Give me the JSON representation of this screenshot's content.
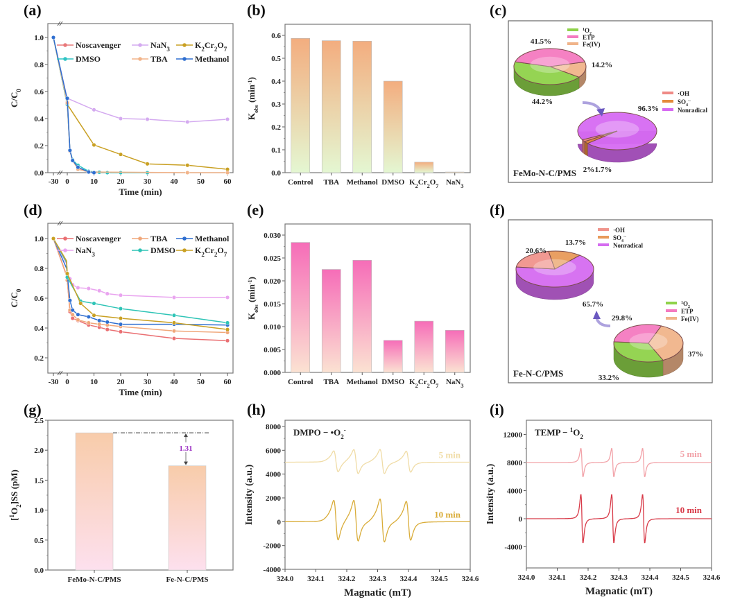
{
  "chart_data": [
    {
      "id": "a",
      "panel_label": "(a)",
      "type": "line",
      "xlabel": "Time (min)",
      "ylabel": "C/C0",
      "ylabel_main": "C/C",
      "ylabel_sub": "0",
      "xlim": [
        -30,
        60
      ],
      "ylim": [
        0.0,
        1.0
      ],
      "xticks": [
        "-30",
        "0",
        "10",
        "20",
        "30",
        "40",
        "50",
        "60"
      ],
      "yticks": [
        "0.0",
        "0.2",
        "0.4",
        "0.6",
        "0.8",
        "1.0"
      ],
      "legend": "top",
      "series": [
        {
          "name": "No scavenger",
          "color": "#e8787a",
          "x": [
            -30,
            -2,
            0,
            1,
            2,
            4,
            8,
            10
          ],
          "y": [
            1.0,
            0.53,
            0.52,
            0.16,
            0.09,
            0.03,
            0.005,
            0.0
          ]
        },
        {
          "name": "NaN3",
          "color": "#d4aaf0",
          "x": [
            -30,
            -2,
            0,
            10,
            20,
            30,
            45,
            60
          ],
          "y": [
            1.0,
            0.56,
            0.55,
            0.465,
            0.4,
            0.395,
            0.375,
            0.395
          ]
        },
        {
          "name": "K2Cr2O7",
          "color": "#c9a023",
          "x": [
            -30,
            -2,
            0,
            10,
            20,
            30,
            45,
            60
          ],
          "y": [
            1.0,
            0.52,
            0.505,
            0.205,
            0.135,
            0.065,
            0.055,
            0.025
          ]
        },
        {
          "name": "DMSO",
          "color": "#2ec4c4",
          "x": [
            -30,
            -2,
            0,
            1,
            2,
            4,
            8,
            12,
            15,
            20,
            30
          ],
          "y": [
            1.0,
            0.52,
            0.505,
            0.165,
            0.095,
            0.055,
            0.01,
            0.003,
            0.0,
            0.0,
            0.0
          ]
        },
        {
          "name": "TBA",
          "color": "#f2b48a",
          "x": [
            -30,
            -2,
            0,
            1,
            2,
            4,
            8,
            45,
            60
          ],
          "y": [
            1.0,
            0.53,
            0.515,
            0.16,
            0.09,
            0.025,
            0.005,
            0.0,
            0.0
          ]
        },
        {
          "name": "Methanol",
          "color": "#2f6fd0",
          "x": [
            -30,
            -2,
            0,
            1,
            2,
            4,
            8,
            10
          ],
          "y": [
            1.0,
            0.555,
            0.55,
            0.165,
            0.09,
            0.04,
            0.005,
            0.0
          ]
        }
      ]
    },
    {
      "id": "b",
      "panel_label": "(b)",
      "type": "bar",
      "ylabel": "Kobs (min-1)",
      "ylabel_main": "K",
      "ylabel_sub": "obs",
      "ylabel_tail": " (min",
      "ylabel_sup": "-1",
      "ylabel_end": ")",
      "ylim": [
        0.0,
        0.6
      ],
      "yticks": [
        "0.0",
        "0.1",
        "0.2",
        "0.3",
        "0.4",
        "0.5",
        "0.6"
      ],
      "categories": [
        "Control",
        "TBA",
        "Methanol",
        "DMSO",
        "K2Cr2O7",
        "NaN3"
      ],
      "values": [
        0.587,
        0.577,
        0.575,
        0.4,
        0.046,
        0.003
      ],
      "gradient_top": "#f3ad7f",
      "gradient_bottom": "#e4f7d2"
    },
    {
      "id": "c",
      "panel_label": "(c)",
      "type": "pie",
      "caption": "FeMo-N-C/PMS",
      "pies": [
        {
          "name": "nonradical-breakdown",
          "labels": [
            "1O2",
            "ETP",
            "Fe(IV)"
          ],
          "values": [
            44.2,
            41.5,
            14.2
          ],
          "value_labels": [
            "44.2%",
            "41.5%",
            "14.2%"
          ],
          "colors": [
            "#8fd24a",
            "#f47ac0",
            "#f0b48a"
          ]
        },
        {
          "name": "radical-vs-nonradical",
          "labels": [
            "·OH",
            "SO4·-",
            "Nonradical"
          ],
          "values": [
            1.7,
            2.0,
            96.3
          ],
          "value_labels": [
            "1.7%",
            "2%",
            "96.3%"
          ],
          "colors": [
            "#ef8a86",
            "#e48a3c",
            "#d66af2"
          ]
        }
      ]
    },
    {
      "id": "d",
      "panel_label": "(d)",
      "type": "line",
      "xlabel": "Time (min)",
      "ylabel": "C/C0",
      "ylabel_main": "C/C",
      "ylabel_sub": "0",
      "xlim": [
        -30,
        60
      ],
      "ylim": [
        0.2,
        1.0
      ],
      "xticks": [
        "-30",
        "0",
        "10",
        "20",
        "30",
        "40",
        "50",
        "60"
      ],
      "yticks": [
        "0.2",
        "0.4",
        "0.6",
        "0.8",
        "1.0"
      ],
      "legend": "top",
      "series": [
        {
          "name": "No scavenger",
          "color": "#ea6f72",
          "x": [
            -30,
            -3,
            0,
            1,
            2,
            4,
            8,
            12,
            15,
            20,
            40,
            60
          ],
          "y": [
            1.0,
            0.75,
            0.72,
            0.51,
            0.465,
            0.45,
            0.42,
            0.405,
            0.39,
            0.375,
            0.33,
            0.315
          ]
        },
        {
          "name": "TBA",
          "color": "#f0a77a",
          "x": [
            -30,
            -3,
            0,
            1,
            2,
            4,
            8,
            12,
            15,
            20,
            40,
            60
          ],
          "y": [
            1.0,
            0.755,
            0.72,
            0.52,
            0.49,
            0.455,
            0.435,
            0.425,
            0.42,
            0.41,
            0.38,
            0.37
          ]
        },
        {
          "name": "Methanol",
          "color": "#2f6fd0",
          "x": [
            -30,
            -3,
            0,
            1,
            2,
            4,
            8,
            12,
            15,
            20,
            40,
            60
          ],
          "y": [
            1.0,
            0.8,
            0.76,
            0.585,
            0.52,
            0.49,
            0.475,
            0.45,
            0.44,
            0.425,
            0.425,
            0.42
          ]
        },
        {
          "name": "NaN3",
          "color": "#e9a4ef",
          "x": [
            -30,
            -3,
            0,
            1,
            2,
            4,
            8,
            12,
            15,
            20,
            40,
            60
          ],
          "y": [
            1.0,
            0.83,
            0.74,
            0.73,
            0.69,
            0.67,
            0.665,
            0.65,
            0.63,
            0.62,
            0.605,
            0.605
          ]
        },
        {
          "name": "DMSO",
          "color": "#2ec4b6",
          "x": [
            -30,
            -3,
            0,
            5,
            10,
            20,
            40,
            60
          ],
          "y": [
            1.0,
            0.84,
            0.74,
            0.58,
            0.565,
            0.53,
            0.485,
            0.435
          ]
        },
        {
          "name": "K2Cr2O7",
          "color": "#c9a023",
          "x": [
            -30,
            -3,
            0,
            5,
            10,
            20,
            40,
            60
          ],
          "y": [
            1.0,
            0.85,
            0.765,
            0.565,
            0.485,
            0.465,
            0.435,
            0.39
          ]
        }
      ]
    },
    {
      "id": "e",
      "panel_label": "(e)",
      "type": "bar",
      "ylabel": "Kobs (min-1)",
      "ylabel_main": "K",
      "ylabel_sub": "obs",
      "ylabel_tail": " (min",
      "ylabel_sup": "-1",
      "ylabel_end": ")",
      "ylim": [
        0.0,
        0.03
      ],
      "yticks": [
        "0.000",
        "0.005",
        "0.010",
        "0.015",
        "0.020",
        "0.025",
        "0.030"
      ],
      "categories": [
        "Control",
        "TBA",
        "Methanol",
        "DMSO",
        "K2Cr2O7",
        "NaN3"
      ],
      "values": [
        0.0284,
        0.0225,
        0.0245,
        0.007,
        0.0112,
        0.0092
      ],
      "gradient_top": "#f66db8",
      "gradient_bottom": "#fbe2d2"
    },
    {
      "id": "f",
      "panel_label": "(f)",
      "type": "pie",
      "caption": "Fe-N-C/PMS",
      "pies": [
        {
          "name": "radical-vs-nonradical",
          "labels": [
            "·OH",
            "SO4·-",
            "Nonradical"
          ],
          "values": [
            20.6,
            13.7,
            65.7
          ],
          "value_labels": [
            "20.6%",
            "13.7%",
            "65.7%"
          ],
          "colors": [
            "#f0948c",
            "#e89a5a",
            "#d56cf0"
          ]
        },
        {
          "name": "nonradical-breakdown",
          "labels": [
            "1O2",
            "ETP",
            "Fe(IV)"
          ],
          "values": [
            33.2,
            29.8,
            37.0
          ],
          "value_labels": [
            "33.2%",
            "29.8%",
            "37%"
          ],
          "colors": [
            "#8fd24a",
            "#f47ac0",
            "#f0b48a"
          ]
        }
      ]
    },
    {
      "id": "g",
      "panel_label": "(g)",
      "type": "bar",
      "ylabel": "[1O2]SS (pM)",
      "ylim": [
        0.0,
        2.5
      ],
      "yticks": [
        "0.0",
        "0.5",
        "1.0",
        "1.5",
        "2.0",
        "2.5"
      ],
      "categories": [
        "FeMo-N-C/PMS",
        "Fe-N-C/PMS"
      ],
      "values": [
        2.29,
        1.74
      ],
      "annotation": "1.31",
      "annotation_color": "#9b2fc2",
      "gradient_top": "#f8ccaa",
      "gradient_bottom": "#fde0ee"
    },
    {
      "id": "h",
      "panel_label": "(h)",
      "type": "line",
      "title": "DMPO − •O2-",
      "title_main": "DMPO − •O",
      "title_sub": "2",
      "title_sup": "-",
      "xlabel": "Magnatic (mT)",
      "ylabel": "Intensity (a.u.)",
      "xlim": [
        324.0,
        324.6
      ],
      "ylim": [
        -4000,
        8000
      ],
      "xticks": [
        "324.0",
        "324.1",
        "324.2",
        "324.3",
        "324.4",
        "324.5",
        "324.6"
      ],
      "yticks": [
        "-4000",
        "-2000",
        "0",
        "2000",
        "4000",
        "6000",
        "8000"
      ],
      "series": [
        {
          "name": "5 min",
          "color": "#f0dca6",
          "baseline": 5000,
          "peaks": [
            324.165,
            324.23,
            324.315,
            324.4
          ],
          "amplitudes": [
            1000,
            1150,
            1150,
            1000
          ]
        },
        {
          "name": "10 min",
          "color": "#d9ac38",
          "baseline": 0,
          "peaks": [
            324.165,
            324.23,
            324.315,
            324.4
          ],
          "amplitudes": [
            1900,
            1950,
            2050,
            1850
          ]
        }
      ]
    },
    {
      "id": "i",
      "panel_label": "(i)",
      "type": "line",
      "title": "TEMP − 1O2",
      "title_pre": "TEMP − ",
      "title_sup": "1",
      "title_main": "O",
      "title_sub": "2",
      "xlabel": "Magnatic (mT)",
      "ylabel": "Intensity (a.u.)",
      "xlim": [
        324.0,
        324.6
      ],
      "ylim": [
        -6000,
        14000
      ],
      "xticks": [
        "324.0",
        "324.1",
        "324.2",
        "324.3",
        "324.4",
        "324.5",
        "324.6"
      ],
      "yticks": [
        "-4000",
        "0",
        "4000",
        "8000",
        "12000"
      ],
      "series": [
        {
          "name": "5 min",
          "color": "#f2a2a8",
          "baseline": 8000,
          "peaks": [
            324.18,
            324.28,
            324.38
          ],
          "amplitudes": [
            2400,
            2400,
            2400
          ]
        },
        {
          "name": "10 min",
          "color": "#d83a48",
          "baseline": 0,
          "peaks": [
            324.18,
            324.28,
            324.38
          ],
          "amplitudes": [
            4100,
            4100,
            4100
          ]
        }
      ]
    }
  ]
}
